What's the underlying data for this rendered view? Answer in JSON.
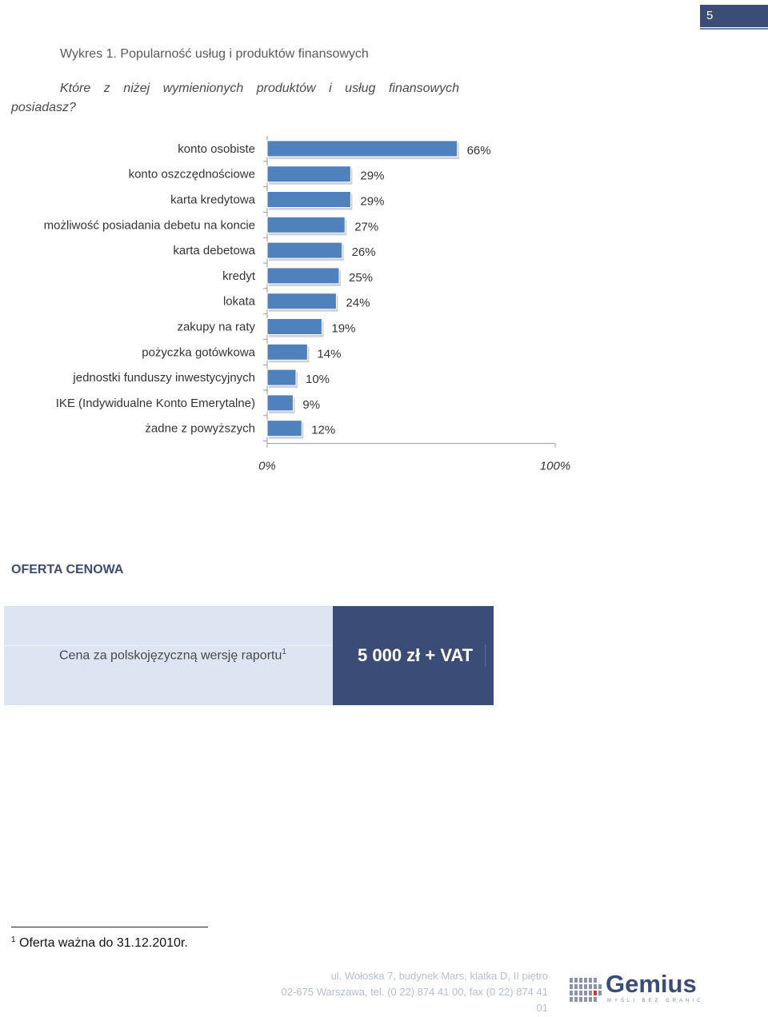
{
  "page": {
    "number": "5"
  },
  "figure": {
    "title": "Wykres 1. Popularność usług i produktów finansowych",
    "question_line1": "Które z niżej wymienionych produktów i usług finansowych",
    "question_line2": "posiadasz?"
  },
  "chart_data": {
    "type": "bar",
    "orientation": "horizontal",
    "categories": [
      "konto osobiste",
      "konto oszczędnościowe",
      "karta kredytowa",
      "możliwość posiadania debetu na koncie",
      "karta debetowa",
      "kredyt",
      "lokata",
      "zakupy na raty",
      "pożyczka gotówkowa",
      "jednostki funduszy inwestycyjnych",
      "IKE (Indywidualne Konto Emerytalne)",
      "żadne z powyższych"
    ],
    "values": [
      66,
      29,
      29,
      27,
      26,
      25,
      24,
      19,
      14,
      10,
      9,
      12
    ],
    "value_labels": [
      "66%",
      "29%",
      "29%",
      "27%",
      "26%",
      "25%",
      "24%",
      "19%",
      "14%",
      "10%",
      "9%",
      "12%"
    ],
    "xlim": [
      0,
      100
    ],
    "x_tick_labels": [
      "0%",
      "100%"
    ],
    "bar_color": "#4f81bd",
    "grid": false
  },
  "offer": {
    "section_title": "OFERTA CENOWA",
    "price_label": "Cena za polskojęzyczną wersję raportu",
    "price_label_footnote_mark": "1",
    "price_value": "5 000 zł + VAT"
  },
  "footnote": {
    "mark": "1",
    "text": "Oferta ważna do 31.12.2010r."
  },
  "footer": {
    "address_line1": "ul. Wołoska 7, budynek Mars, klatka D, II piętro",
    "address_line2": "02-675 Warszawa, tel. (0 22) 874 41 00, fax (0 22) 874 41 01",
    "logo_name": "Gemius",
    "logo_tagline": "MYŚLI BEZ GRANIC"
  },
  "colors": {
    "brand_dark": "#3b4d77",
    "price_light": "#dce5f1"
  }
}
